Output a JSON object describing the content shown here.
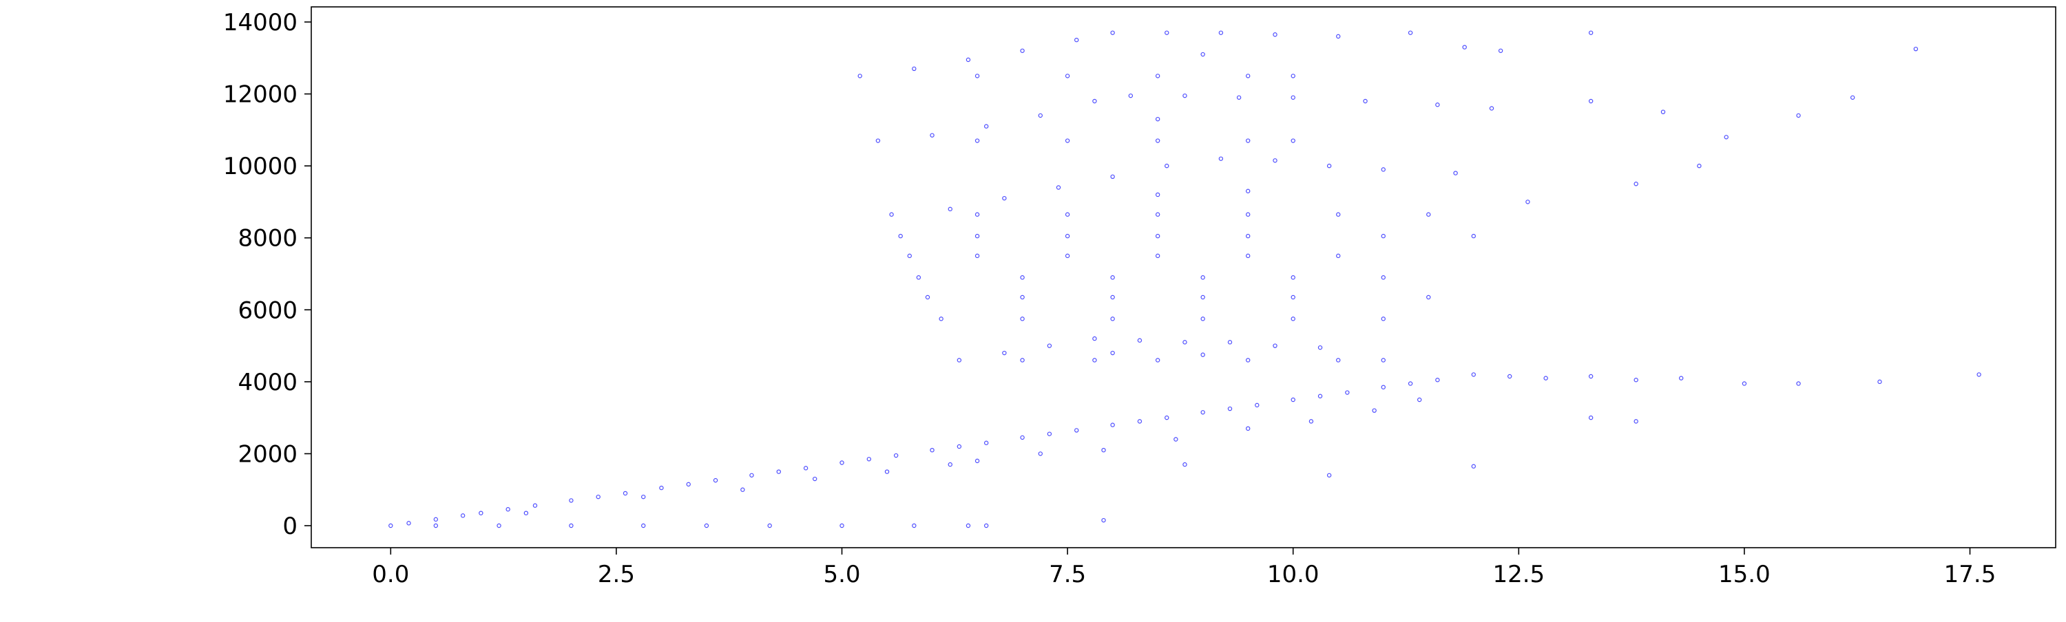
{
  "chart_data": {
    "type": "scatter",
    "series": [
      {
        "color": "#0000ff",
        "x": [
          0.2,
          0.5,
          0.8,
          1.0,
          1.3,
          1.6,
          2.0,
          2.3,
          2.6,
          3.0,
          3.3,
          3.6,
          4.0,
          4.3,
          4.6,
          5.0,
          5.3,
          5.6,
          6.0,
          6.3,
          6.6,
          7.0,
          7.3,
          7.6,
          8.0,
          8.3,
          8.6,
          9.0,
          9.3,
          9.6,
          10.0,
          10.3,
          10.6,
          11.0,
          11.3,
          11.6,
          12.0,
          12.4,
          12.8,
          13.3,
          13.8,
          14.3,
          15.0,
          15.6,
          16.5,
          17.6,
          1.5,
          2.8,
          3.9,
          4.7,
          5.5,
          6.2,
          6.5,
          7.2,
          7.9,
          8.7,
          9.5,
          10.2,
          10.9,
          11.4,
          0.0,
          0.5,
          1.2,
          2.0,
          2.8,
          3.5,
          4.2,
          5.0,
          5.8,
          6.4,
          6.6,
          7.9,
          8.8,
          10.4,
          12.0,
          13.3,
          13.8,
          6.3,
          7.0,
          7.8,
          8.5,
          9.5,
          10.5,
          11.0,
          6.8,
          7.3,
          7.8,
          8.3,
          8.8,
          9.3,
          9.8,
          10.3,
          8.0,
          9.0,
          6.1,
          7.0,
          8.0,
          9.0,
          10.0,
          11.0,
          5.95,
          7.0,
          8.0,
          9.0,
          10.0,
          11.5,
          5.85,
          7.0,
          8.0,
          9.0,
          10.0,
          11.0,
          5.75,
          6.5,
          7.5,
          8.5,
          9.5,
          10.5,
          5.65,
          6.5,
          7.5,
          8.5,
          9.5,
          11.0,
          12.0,
          5.55,
          6.5,
          7.5,
          8.5,
          9.5,
          10.5,
          11.5,
          6.2,
          6.8,
          7.4,
          8.0,
          8.6,
          9.2,
          9.8,
          10.4,
          11.0,
          11.8,
          12.6,
          13.8,
          14.5,
          8.5,
          9.5,
          5.4,
          6.5,
          7.5,
          8.5,
          9.5,
          10.0,
          6.0,
          6.6,
          7.2,
          7.8,
          8.2,
          8.8,
          9.4,
          10.0,
          10.8,
          11.6,
          12.2,
          13.3,
          14.1,
          14.8,
          15.6,
          16.2,
          8.5,
          5.2,
          6.5,
          7.5,
          8.5,
          9.5,
          10.0,
          5.8,
          6.4,
          7.0,
          7.6,
          8.0,
          8.6,
          9.2,
          9.8,
          10.5,
          11.3,
          11.9,
          12.3,
          13.3,
          16.9,
          9.0
        ],
        "values": [
          70,
          175,
          280,
          350,
          455,
          560,
          700,
          800,
          900,
          1050,
          1150,
          1260,
          1400,
          1500,
          1600,
          1750,
          1850,
          1950,
          2100,
          2200,
          2300,
          2450,
          2550,
          2650,
          2800,
          2900,
          3000,
          3150,
          3250,
          3350,
          3500,
          3600,
          3700,
          3850,
          3950,
          4050,
          4200,
          4150,
          4100,
          4150,
          4050,
          4100,
          3950,
          3950,
          4000,
          4200,
          350,
          800,
          1000,
          1300,
          1500,
          1700,
          1800,
          2000,
          2100,
          2400,
          2700,
          2900,
          3200,
          3500,
          0,
          0,
          0,
          0,
          0,
          0,
          0,
          0,
          0,
          0,
          0,
          150,
          1700,
          1400,
          1650,
          3000,
          2900,
          4600,
          4600,
          4600,
          4600,
          4600,
          4600,
          4600,
          4800,
          5000,
          5200,
          5150,
          5100,
          5100,
          5000,
          4950,
          4800,
          4750,
          5750,
          5750,
          5750,
          5750,
          5750,
          5750,
          6350,
          6350,
          6350,
          6350,
          6350,
          6350,
          6900,
          6900,
          6900,
          6900,
          6900,
          6900,
          7500,
          7500,
          7500,
          7500,
          7500,
          7500,
          8050,
          8050,
          8050,
          8050,
          8050,
          8050,
          8050,
          8650,
          8650,
          8650,
          8650,
          8650,
          8650,
          8650,
          8800,
          9100,
          9400,
          9700,
          10000,
          10200,
          10150,
          10000,
          9900,
          9800,
          9000,
          9500,
          10000,
          9200,
          9300,
          10700,
          10700,
          10700,
          10700,
          10700,
          10700,
          10850,
          11100,
          11400,
          11800,
          11950,
          11950,
          11900,
          11900,
          11800,
          11700,
          11600,
          11800,
          11500,
          10800,
          11400,
          11900,
          11300,
          12500,
          12500,
          12500,
          12500,
          12500,
          12500,
          12700,
          12950,
          13200,
          13500,
          13700,
          13700,
          13700,
          13650,
          13600,
          13700,
          13300,
          13200,
          13700,
          13250,
          13100
        ]
      }
    ],
    "xlim": [
      -0.88,
      18.45
    ],
    "ylim": [
      -612,
      14420
    ],
    "xticks": [
      {
        "value": 0,
        "label": "0.0"
      },
      2.5,
      {
        "value": 5,
        "label": "5.0"
      },
      7.5,
      {
        "value": 10,
        "label": "10.0"
      },
      12.5,
      {
        "value": 15,
        "label": "15.0"
      },
      17.5
    ],
    "yticks": [
      0,
      2000,
      4000,
      6000,
      8000,
      10000,
      12000,
      14000
    ]
  }
}
